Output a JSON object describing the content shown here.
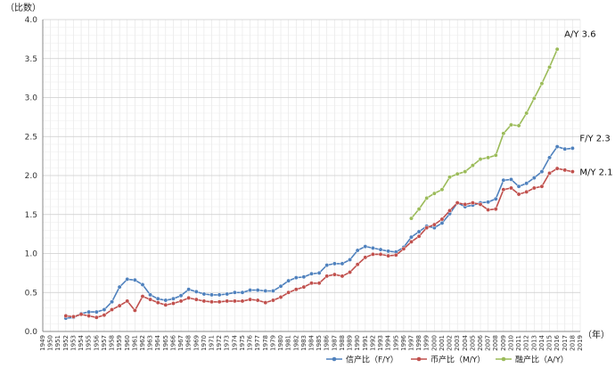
{
  "chart_data": {
    "type": "line",
    "y_unit_label": "（比数）",
    "x_unit_label": "（年）",
    "ylim": [
      0,
      4
    ],
    "y_ticks": [
      "0.0",
      "0.5",
      "1.0",
      "1.5",
      "2.0",
      "2.5",
      "3.0",
      "3.5",
      "4.0"
    ],
    "xlim": [
      1949,
      2019
    ],
    "grid": true,
    "legend_position": "bottom",
    "series": [
      {
        "name": "信产比（F/Y）",
        "end_label": "F/Y 2.3",
        "color": "#4f81bd",
        "x": [
          1952,
          1953,
          1954,
          1955,
          1956,
          1957,
          1958,
          1959,
          1960,
          1961,
          1962,
          1963,
          1964,
          1965,
          1966,
          1967,
          1968,
          1969,
          1970,
          1971,
          1972,
          1973,
          1974,
          1975,
          1976,
          1977,
          1978,
          1979,
          1980,
          1981,
          1982,
          1983,
          1984,
          1985,
          1986,
          1987,
          1988,
          1989,
          1990,
          1991,
          1992,
          1993,
          1994,
          1995,
          1996,
          1997,
          1998,
          1999,
          2000,
          2001,
          2002,
          2003,
          2004,
          2005,
          2006,
          2007,
          2008,
          2009,
          2010,
          2011,
          2012,
          2013,
          2014,
          2015,
          2016,
          2017,
          2018
        ],
        "values": [
          0.17,
          0.18,
          0.23,
          0.25,
          0.25,
          0.28,
          0.38,
          0.57,
          0.67,
          0.66,
          0.6,
          0.47,
          0.42,
          0.4,
          0.42,
          0.46,
          0.54,
          0.51,
          0.48,
          0.47,
          0.47,
          0.48,
          0.5,
          0.5,
          0.53,
          0.53,
          0.52,
          0.52,
          0.58,
          0.65,
          0.69,
          0.7,
          0.74,
          0.75,
          0.85,
          0.87,
          0.87,
          0.92,
          1.04,
          1.09,
          1.07,
          1.05,
          1.03,
          1.02,
          1.08,
          1.21,
          1.28,
          1.35,
          1.33,
          1.39,
          1.51,
          1.65,
          1.6,
          1.62,
          1.65,
          1.66,
          1.7,
          1.94,
          1.95,
          1.86,
          1.9,
          1.97,
          2.05,
          2.23,
          2.37,
          2.34,
          2.35
        ]
      },
      {
        "name": "币产比（M/Y）",
        "end_label": "M/Y 2.1",
        "color": "#c0504d",
        "x": [
          1952,
          1953,
          1954,
          1955,
          1956,
          1957,
          1958,
          1959,
          1960,
          1961,
          1962,
          1963,
          1964,
          1965,
          1966,
          1967,
          1968,
          1969,
          1970,
          1971,
          1972,
          1973,
          1974,
          1975,
          1976,
          1977,
          1978,
          1979,
          1980,
          1981,
          1982,
          1983,
          1984,
          1985,
          1986,
          1987,
          1988,
          1989,
          1990,
          1991,
          1992,
          1993,
          1994,
          1995,
          1996,
          1997,
          1998,
          1999,
          2000,
          2001,
          2002,
          2003,
          2004,
          2005,
          2006,
          2007,
          2008,
          2009,
          2010,
          2011,
          2012,
          2013,
          2014,
          2015,
          2016,
          2017,
          2018
        ],
        "values": [
          0.2,
          0.19,
          0.22,
          0.2,
          0.18,
          0.21,
          0.28,
          0.33,
          0.39,
          0.27,
          0.45,
          0.41,
          0.37,
          0.34,
          0.36,
          0.39,
          0.43,
          0.41,
          0.39,
          0.38,
          0.38,
          0.39,
          0.39,
          0.39,
          0.41,
          0.4,
          0.37,
          0.4,
          0.44,
          0.5,
          0.54,
          0.57,
          0.62,
          0.62,
          0.71,
          0.73,
          0.71,
          0.76,
          0.86,
          0.95,
          0.99,
          0.99,
          0.97,
          0.98,
          1.06,
          1.15,
          1.22,
          1.33,
          1.37,
          1.44,
          1.55,
          1.65,
          1.63,
          1.65,
          1.63,
          1.56,
          1.57,
          1.82,
          1.84,
          1.76,
          1.79,
          1.84,
          1.86,
          2.03,
          2.09,
          2.07,
          2.05
        ]
      },
      {
        "name": "融产比（A/Y）",
        "end_label": "A/Y 3.6",
        "color": "#9bbb59",
        "x": [
          1997,
          1998,
          1999,
          2000,
          2001,
          2002,
          2003,
          2004,
          2005,
          2006,
          2007,
          2008,
          2009,
          2010,
          2011,
          2012,
          2013,
          2014,
          2015,
          2016
        ],
        "values": [
          1.45,
          1.57,
          1.71,
          1.77,
          1.82,
          1.98,
          2.02,
          2.05,
          2.13,
          2.21,
          2.23,
          2.26,
          2.54,
          2.65,
          2.64,
          2.8,
          2.99,
          3.18,
          3.39,
          3.62
        ]
      }
    ]
  }
}
